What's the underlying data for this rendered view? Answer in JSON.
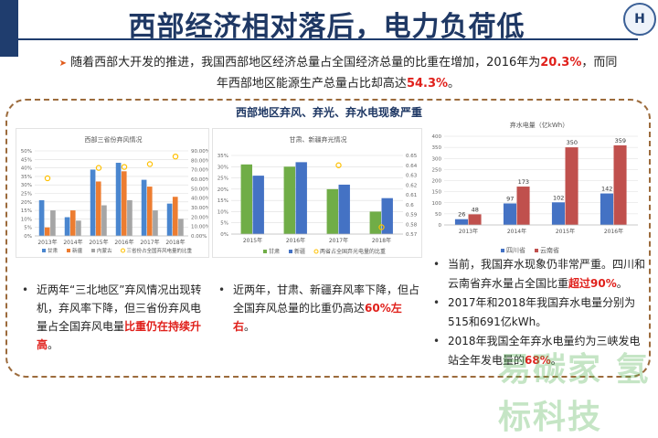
{
  "title": "西部经济相对落后，电力负荷低",
  "logo_text": "H",
  "intro": {
    "p1": "随着西部大开发的推进，我国西部地区经济总量占全国经济总量的比重在增加，2016年为",
    "v1": "20.3%",
    "p2": "，而同年西部地区能源生产总量占比却高达",
    "v2": "54.3%",
    "p3": "。"
  },
  "subtitle": "西部地区弃风、弃光、弃水电现象严重",
  "col1": {
    "p1": "近两年“三北地区”弃风情况出现转机，弃风率下降，但三省份弃风电量占全国弃风电量",
    "hl": "比重仍在持续升高",
    "p2": "。"
  },
  "col2": {
    "p1": "近两年，甘肃、新疆弃风率下降，但占全国弃风总量的比重仍高达",
    "hl": "60%左右",
    "p2": "。"
  },
  "col3": [
    {
      "p1": "当前，我国弃水现象仍非常严重。四川和云南省弃水量占全国比重",
      "hl": "超过90%",
      "p2": "。"
    },
    {
      "p1": "2017年和2018年我国弃水电量分别为515和691亿kWh。",
      "hl": "",
      "p2": ""
    },
    {
      "p1": "2018年我国全年弃水电量约为三峡发电站全年发电量的",
      "hl": "68%",
      "p2": "。"
    }
  ],
  "watermark": "易碳家 氢标科技",
  "chart_data": [
    {
      "type": "bar",
      "title": "西部三省份弃风情况",
      "categories": [
        "2013年",
        "2014年",
        "2015年",
        "2016年",
        "2017年",
        "2018年"
      ],
      "series": [
        {
          "name": "甘肃",
          "color": "#4a86cf",
          "values": [
            21,
            11,
            39,
            43,
            33,
            19
          ]
        },
        {
          "name": "新疆",
          "color": "#ed7d31",
          "values": [
            5,
            15,
            32,
            38,
            29,
            23
          ]
        },
        {
          "name": "内蒙古",
          "color": "#a5a5a5",
          "values": [
            15,
            9,
            18,
            21,
            15,
            10
          ]
        }
      ],
      "line": {
        "name": "三省份占全国弃风电量的比重",
        "color": "#ffc000",
        "values": [
          61,
          null,
          72,
          73,
          76,
          84
        ]
      },
      "ylim": [
        0,
        50
      ],
      "yticks": [
        "0%",
        "5%",
        "10%",
        "15%",
        "20%",
        "25%",
        "30%",
        "35%",
        "40%",
        "45%",
        "50%"
      ],
      "y2lim": [
        0,
        90
      ],
      "y2ticks": [
        "0.00%",
        "10.00%",
        "20.00%",
        "30.00%",
        "40.00%",
        "50.00%",
        "60.00%",
        "70.00%",
        "80.00%",
        "90.00%"
      ]
    },
    {
      "type": "bar",
      "title": "甘肃、新疆弃光情况",
      "categories": [
        "2015年",
        "2016年",
        "2017年",
        "2018年"
      ],
      "series": [
        {
          "name": "甘肃",
          "color": "#70ad47",
          "values": [
            31,
            30,
            20,
            10
          ]
        },
        {
          "name": "新疆",
          "color": "#4472c4",
          "values": [
            26,
            32,
            22,
            16
          ]
        }
      ],
      "line": {
        "name": "两省占全国弃光电量的比重",
        "color": "#ffc000",
        "values": [
          null,
          null,
          0.64,
          0.577
        ]
      },
      "ylim": [
        0,
        35
      ],
      "yticks": [
        "0%",
        "5%",
        "10%",
        "15%",
        "20%",
        "25%",
        "30%",
        "35%"
      ],
      "y2lim": [
        0.57,
        0.65
      ],
      "y2ticks": [
        "0.57",
        "0.58",
        "0.59",
        "0.6",
        "0.61",
        "0.62",
        "0.63",
        "0.64",
        "0.65"
      ]
    },
    {
      "type": "bar",
      "title": "弃水电量（亿kWh）",
      "categories": [
        "2013年",
        "2014年",
        "2015年",
        "2016年"
      ],
      "series": [
        {
          "name": "四川省",
          "color": "#4472c4",
          "values": [
            26,
            97,
            102,
            142
          ]
        },
        {
          "name": "云南省",
          "color": "#c0504d",
          "values": [
            48,
            173,
            350,
            359
          ]
        }
      ],
      "ylim": [
        0,
        400
      ],
      "yticks": [
        "0",
        "50",
        "100",
        "150",
        "200",
        "250",
        "300",
        "350",
        "400"
      ],
      "labels": true
    }
  ]
}
